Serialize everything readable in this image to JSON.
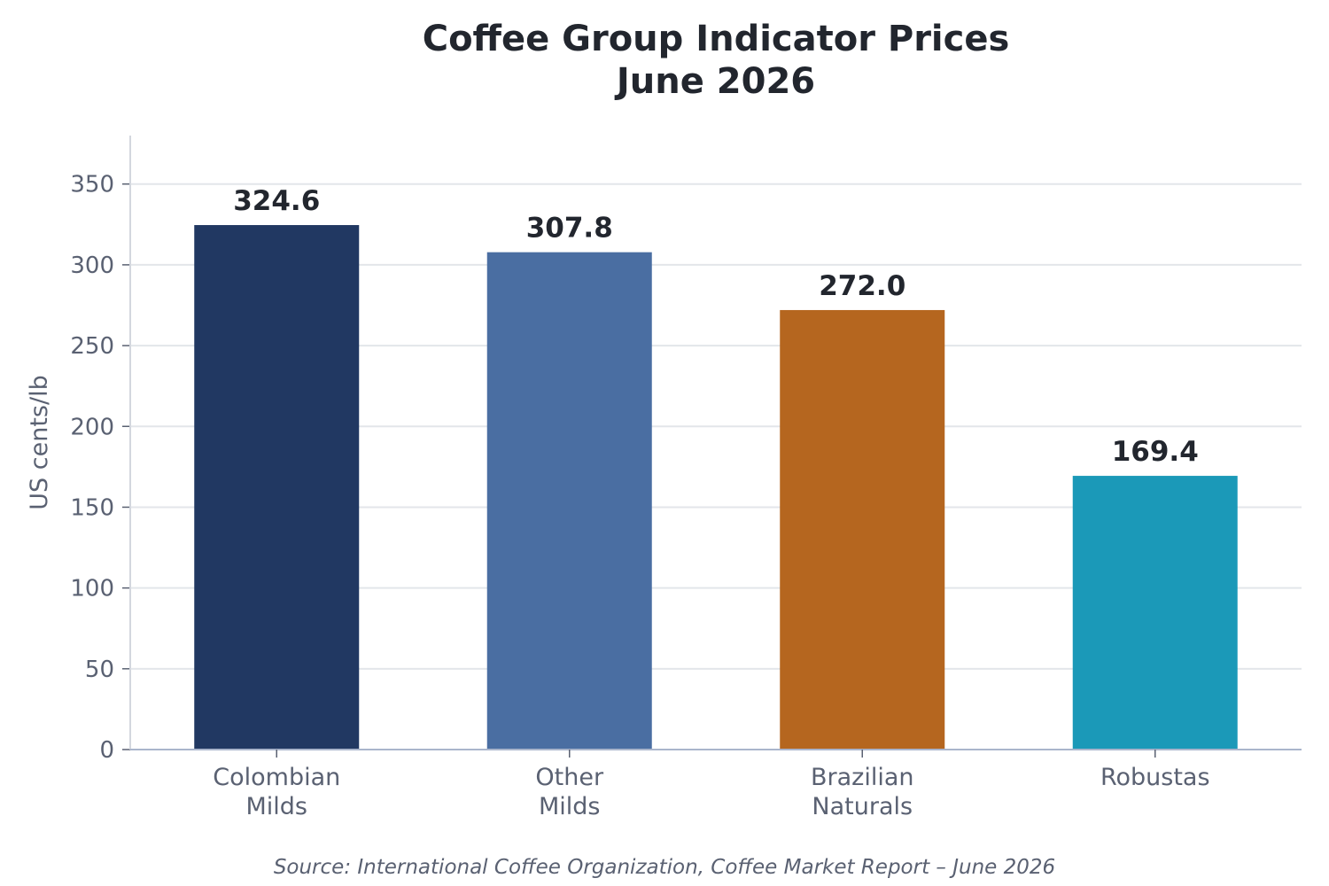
{
  "chart_data": {
    "type": "bar",
    "title_line1": "Coffee Group Indicator Prices",
    "title_line2": "June 2026",
    "ylabel": "US cents/lb",
    "xlabel": "",
    "categories": [
      [
        "Colombian",
        "Milds"
      ],
      [
        "Other",
        "Milds"
      ],
      [
        "Brazilian",
        "Naturals"
      ],
      [
        "Robustas"
      ]
    ],
    "values": [
      324.6,
      307.8,
      272.0,
      169.4
    ],
    "value_labels": [
      "324.6",
      "307.8",
      "272.0",
      "169.4"
    ],
    "colors": [
      "#213862",
      "#4a6ea2",
      "#b5661f",
      "#1b99b8"
    ],
    "ylim": [
      0,
      380
    ],
    "yticks": [
      0,
      50,
      100,
      150,
      200,
      250,
      300,
      350
    ],
    "grid": true,
    "legend": "none",
    "source": "Source: International Coffee Organization, Coffee Market Report – June 2026"
  }
}
